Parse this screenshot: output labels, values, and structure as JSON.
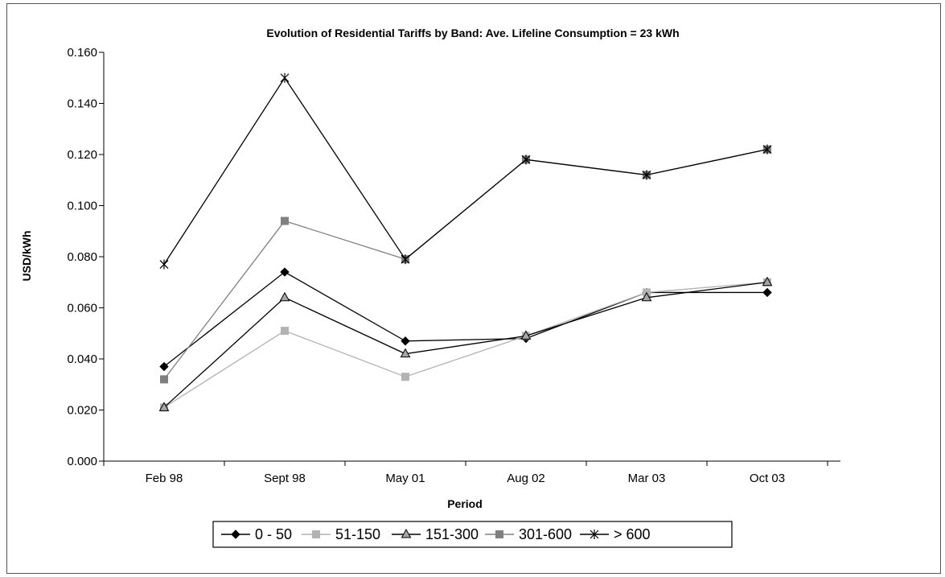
{
  "chart_data": {
    "type": "line",
    "title": "Evolution of Residential Tariffs by Band: Ave. Lifeline Consumption = 23 kWh",
    "xlabel": "Period",
    "ylabel": "USD/kWh",
    "categories": [
      "Feb 98",
      "Sept 98",
      "May 01",
      "Aug 02",
      "Mar 03",
      "Oct 03"
    ],
    "ylim": [
      0,
      0.16
    ],
    "yticks": [
      "0.000",
      "0.020",
      "0.040",
      "0.060",
      "0.080",
      "0.100",
      "0.120",
      "0.140",
      "0.160"
    ],
    "grid": false,
    "legend_position": "bottom",
    "series": [
      {
        "name": "0 - 50",
        "values": [
          0.037,
          0.074,
          0.047,
          0.048,
          0.066,
          0.066
        ],
        "color": "#000000",
        "marker": "diamond"
      },
      {
        "name": "51-150",
        "values": [
          0.021,
          0.051,
          0.033,
          0.049,
          0.066,
          0.07
        ],
        "color": "#b3b3b3",
        "marker": "square"
      },
      {
        "name": "151-300",
        "values": [
          0.021,
          0.064,
          0.042,
          0.049,
          0.064,
          0.07
        ],
        "color": "#000000",
        "marker": "triangle"
      },
      {
        "name": "301-600",
        "values": [
          0.032,
          0.094,
          0.079,
          0.118,
          0.112,
          0.122
        ],
        "color": "#808080",
        "marker": "square"
      },
      {
        "name": "> 600",
        "values": [
          0.077,
          0.15,
          0.079,
          0.118,
          0.112,
          0.122
        ],
        "color": "#000000",
        "marker": "star"
      }
    ]
  }
}
